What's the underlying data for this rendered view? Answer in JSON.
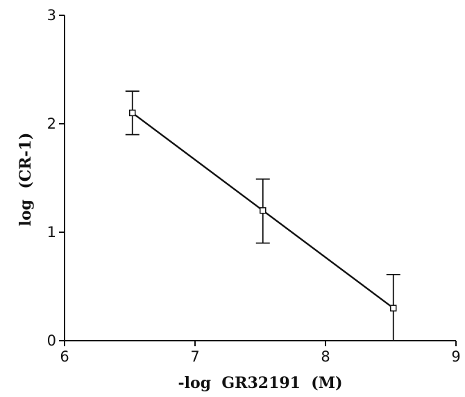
{
  "chart_data": {
    "type": "line",
    "title": "",
    "xlabel": "-log  GR32191  (M)",
    "ylabel": "log  (CR-1)",
    "xlim": [
      6,
      9
    ],
    "ylim": [
      0,
      3
    ],
    "x_ticks": [
      "6",
      "7",
      "8",
      "9"
    ],
    "y_ticks": [
      "0",
      "1",
      "2",
      "3"
    ],
    "grid": false,
    "legend": "none",
    "colors": {
      "ink": "#111111",
      "marker_fill": "#ffffff"
    },
    "points": [
      {
        "x": 6.52,
        "y": 2.1,
        "err_low": 1.9,
        "err_high": 2.3
      },
      {
        "x": 7.52,
        "y": 1.2,
        "err_low": 0.9,
        "err_high": 1.49
      },
      {
        "x": 8.52,
        "y": 0.3,
        "err_low": 0.0,
        "err_high": 0.61
      }
    ]
  }
}
